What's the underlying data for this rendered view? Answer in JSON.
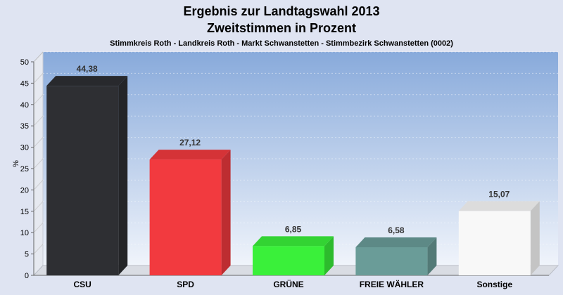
{
  "chart_data": {
    "type": "bar",
    "title": "Ergebnis zur Landtagswahl 2013",
    "subtitle": "Zweitstimmen in Prozent",
    "caption": "Stimmkreis Roth - Landkreis Roth - Markt Schwanstetten - Stimmbezirk Schwanstetten (0002)",
    "ylabel": "%",
    "xlabel": "",
    "ylim": [
      0,
      50
    ],
    "yticks": [
      0,
      5,
      10,
      15,
      20,
      25,
      30,
      35,
      40,
      45,
      50
    ],
    "grid": true,
    "categories": [
      "CSU",
      "SPD",
      "GRÜNE",
      "FREIE WÄHLER",
      "Sonstige"
    ],
    "values": [
      44.38,
      27.12,
      6.85,
      6.58,
      15.07
    ],
    "value_labels": [
      "44,38",
      "27,12",
      "6,85",
      "6,58",
      "15,07"
    ],
    "colors": [
      "#2e2f33",
      "#f23a3f",
      "#3af03a",
      "#6a9c98",
      "#f8f8f8"
    ]
  }
}
